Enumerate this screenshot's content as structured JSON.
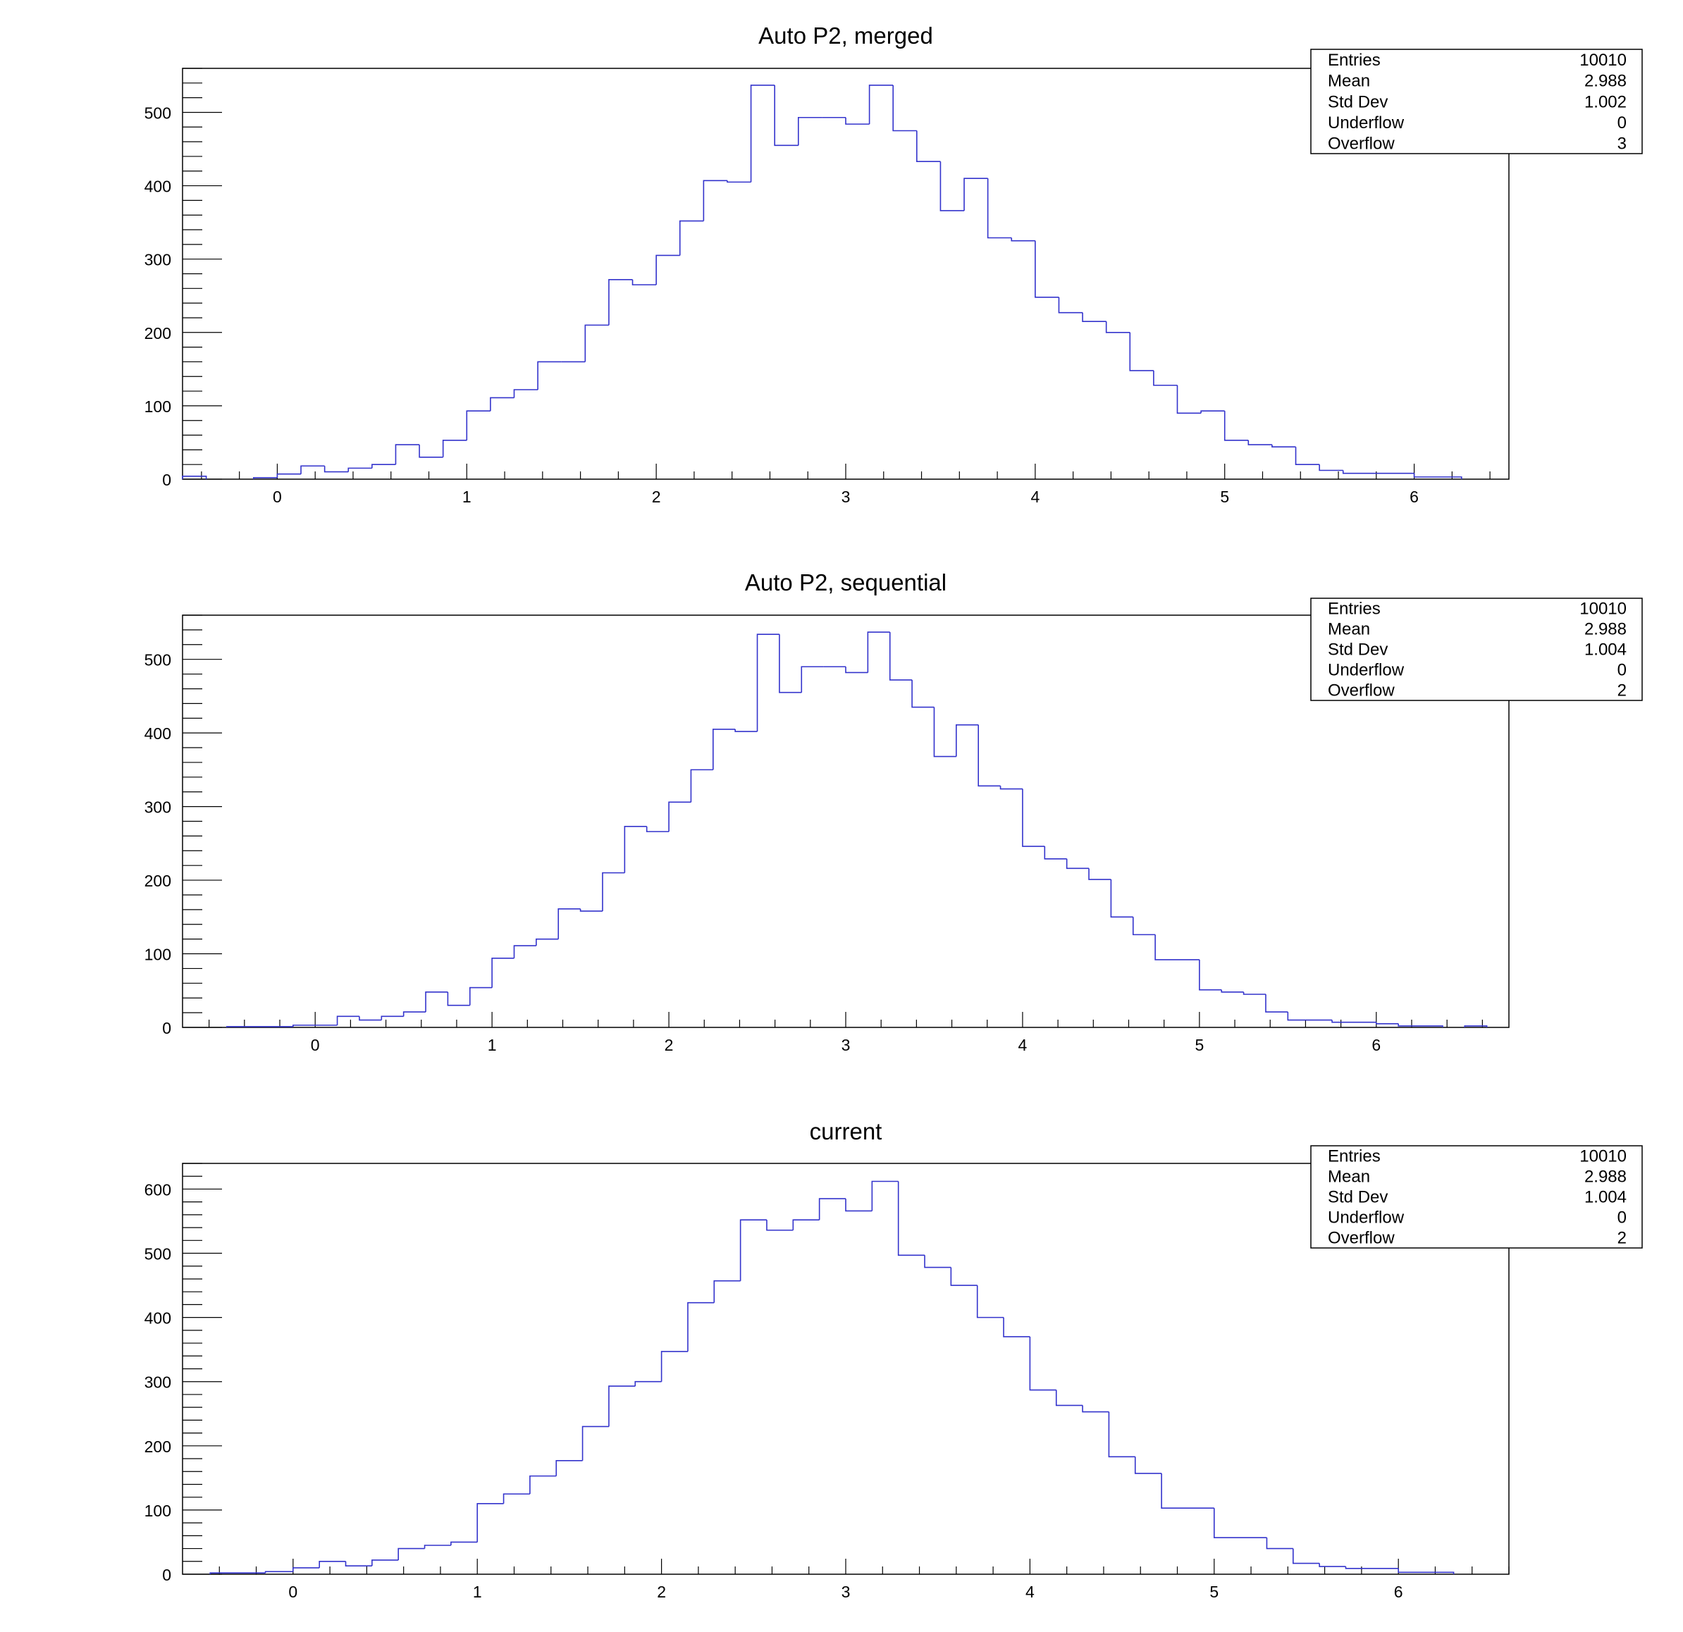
{
  "colors": {
    "histogram_line": "#3333cc",
    "frame": "#000000",
    "background": "#ffffff"
  },
  "chart_data": [
    {
      "type": "bar",
      "style": "step histogram",
      "title": "Auto P2, merged",
      "xlabel": "",
      "ylabel": "",
      "xlim": [
        -0.5,
        6.5
      ],
      "ylim": [
        0,
        560
      ],
      "x_ticks": [
        "0",
        "1",
        "2",
        "3",
        "4",
        "5",
        "6"
      ],
      "y_ticks": [
        "0",
        "100",
        "200",
        "300",
        "400",
        "500"
      ],
      "bins": [
        {
          "lo": -0.5,
          "hi": -0.375,
          "v": 4
        },
        {
          "lo": -0.125,
          "hi": 0.0,
          "v": 2
        },
        {
          "lo": 0.0,
          "hi": 0.125,
          "v": 7
        },
        {
          "lo": 0.125,
          "hi": 0.25,
          "v": 18
        },
        {
          "lo": 0.25,
          "hi": 0.375,
          "v": 10
        },
        {
          "lo": 0.375,
          "hi": 0.5,
          "v": 15
        },
        {
          "lo": 0.5,
          "hi": 0.625,
          "v": 20
        },
        {
          "lo": 0.625,
          "hi": 0.75,
          "v": 47
        },
        {
          "lo": 0.75,
          "hi": 0.875,
          "v": 30
        },
        {
          "lo": 0.875,
          "hi": 1.0,
          "v": 53
        },
        {
          "lo": 1.0,
          "hi": 1.125,
          "v": 93
        },
        {
          "lo": 1.125,
          "hi": 1.25,
          "v": 111
        },
        {
          "lo": 1.25,
          "hi": 1.375,
          "v": 122
        },
        {
          "lo": 1.375,
          "hi": 1.5,
          "v": 160
        },
        {
          "lo": 1.5,
          "hi": 1.625,
          "v": 160
        },
        {
          "lo": 1.625,
          "hi": 1.75,
          "v": 210
        },
        {
          "lo": 1.75,
          "hi": 1.875,
          "v": 272
        },
        {
          "lo": 1.875,
          "hi": 2.0,
          "v": 265
        },
        {
          "lo": 2.0,
          "hi": 2.125,
          "v": 305
        },
        {
          "lo": 2.125,
          "hi": 2.25,
          "v": 352
        },
        {
          "lo": 2.25,
          "hi": 2.375,
          "v": 407
        },
        {
          "lo": 2.375,
          "hi": 2.5,
          "v": 405
        },
        {
          "lo": 2.5,
          "hi": 2.625,
          "v": 537
        },
        {
          "lo": 2.625,
          "hi": 2.75,
          "v": 455
        },
        {
          "lo": 2.75,
          "hi": 2.875,
          "v": 493
        },
        {
          "lo": 2.875,
          "hi": 3.0,
          "v": 493
        },
        {
          "lo": 3.0,
          "hi": 3.125,
          "v": 484
        },
        {
          "lo": 3.125,
          "hi": 3.25,
          "v": 537
        },
        {
          "lo": 3.25,
          "hi": 3.375,
          "v": 475
        },
        {
          "lo": 3.375,
          "hi": 3.5,
          "v": 433
        },
        {
          "lo": 3.5,
          "hi": 3.625,
          "v": 366
        },
        {
          "lo": 3.625,
          "hi": 3.75,
          "v": 410
        },
        {
          "lo": 3.75,
          "hi": 3.875,
          "v": 329
        },
        {
          "lo": 3.875,
          "hi": 4.0,
          "v": 325
        },
        {
          "lo": 4.0,
          "hi": 4.125,
          "v": 248
        },
        {
          "lo": 4.125,
          "hi": 4.25,
          "v": 227
        },
        {
          "lo": 4.25,
          "hi": 4.375,
          "v": 215
        },
        {
          "lo": 4.375,
          "hi": 4.5,
          "v": 200
        },
        {
          "lo": 4.5,
          "hi": 4.625,
          "v": 148
        },
        {
          "lo": 4.625,
          "hi": 4.75,
          "v": 128
        },
        {
          "lo": 4.75,
          "hi": 4.875,
          "v": 90
        },
        {
          "lo": 4.875,
          "hi": 5.0,
          "v": 93
        },
        {
          "lo": 5.0,
          "hi": 5.125,
          "v": 53
        },
        {
          "lo": 5.125,
          "hi": 5.25,
          "v": 47
        },
        {
          "lo": 5.25,
          "hi": 5.375,
          "v": 44
        },
        {
          "lo": 5.375,
          "hi": 5.5,
          "v": 20
        },
        {
          "lo": 5.5,
          "hi": 5.625,
          "v": 12
        },
        {
          "lo": 5.625,
          "hi": 6.0,
          "v": 8
        },
        {
          "lo": 6.0,
          "hi": 6.25,
          "v": 3
        }
      ],
      "stats": [
        {
          "label": "Entries",
          "value": "10010"
        },
        {
          "label": "Mean",
          "value": "2.988"
        },
        {
          "label": "Std Dev",
          "value": "1.002"
        },
        {
          "label": "Underflow",
          "value": "0"
        },
        {
          "label": "Overflow",
          "value": "3"
        }
      ]
    },
    {
      "type": "bar",
      "style": "step histogram",
      "title": "Auto P2, sequential",
      "xlabel": "",
      "ylabel": "",
      "xlim": [
        -0.75,
        6.75
      ],
      "ylim": [
        0,
        560
      ],
      "x_ticks": [
        "0",
        "1",
        "2",
        "3",
        "4",
        "5",
        "6"
      ],
      "y_ticks": [
        "0",
        "100",
        "200",
        "300",
        "400",
        "500"
      ],
      "bins": [
        {
          "lo": -0.5,
          "hi": -0.125,
          "v": 1
        },
        {
          "lo": -0.125,
          "hi": 0.125,
          "v": 3
        },
        {
          "lo": 0.125,
          "hi": 0.25,
          "v": 15
        },
        {
          "lo": 0.25,
          "hi": 0.375,
          "v": 10
        },
        {
          "lo": 0.375,
          "hi": 0.5,
          "v": 15
        },
        {
          "lo": 0.5,
          "hi": 0.625,
          "v": 21
        },
        {
          "lo": 0.625,
          "hi": 0.75,
          "v": 48
        },
        {
          "lo": 0.75,
          "hi": 0.875,
          "v": 30
        },
        {
          "lo": 0.875,
          "hi": 1.0,
          "v": 54
        },
        {
          "lo": 1.0,
          "hi": 1.125,
          "v": 94
        },
        {
          "lo": 1.125,
          "hi": 1.25,
          "v": 111
        },
        {
          "lo": 1.25,
          "hi": 1.375,
          "v": 120
        },
        {
          "lo": 1.375,
          "hi": 1.5,
          "v": 161
        },
        {
          "lo": 1.5,
          "hi": 1.625,
          "v": 158
        },
        {
          "lo": 1.625,
          "hi": 1.75,
          "v": 210
        },
        {
          "lo": 1.75,
          "hi": 1.875,
          "v": 273
        },
        {
          "lo": 1.875,
          "hi": 2.0,
          "v": 266
        },
        {
          "lo": 2.0,
          "hi": 2.125,
          "v": 306
        },
        {
          "lo": 2.125,
          "hi": 2.25,
          "v": 350
        },
        {
          "lo": 2.25,
          "hi": 2.375,
          "v": 405
        },
        {
          "lo": 2.375,
          "hi": 2.5,
          "v": 402
        },
        {
          "lo": 2.5,
          "hi": 2.625,
          "v": 534
        },
        {
          "lo": 2.625,
          "hi": 2.75,
          "v": 455
        },
        {
          "lo": 2.75,
          "hi": 2.875,
          "v": 490
        },
        {
          "lo": 2.875,
          "hi": 3.0,
          "v": 490
        },
        {
          "lo": 3.0,
          "hi": 3.125,
          "v": 482
        },
        {
          "lo": 3.125,
          "hi": 3.25,
          "v": 537
        },
        {
          "lo": 3.25,
          "hi": 3.375,
          "v": 472
        },
        {
          "lo": 3.375,
          "hi": 3.5,
          "v": 435
        },
        {
          "lo": 3.5,
          "hi": 3.625,
          "v": 368
        },
        {
          "lo": 3.625,
          "hi": 3.75,
          "v": 411
        },
        {
          "lo": 3.75,
          "hi": 3.875,
          "v": 328
        },
        {
          "lo": 3.875,
          "hi": 4.0,
          "v": 324
        },
        {
          "lo": 4.0,
          "hi": 4.125,
          "v": 246
        },
        {
          "lo": 4.125,
          "hi": 4.25,
          "v": 229
        },
        {
          "lo": 4.25,
          "hi": 4.375,
          "v": 216
        },
        {
          "lo": 4.375,
          "hi": 4.5,
          "v": 201
        },
        {
          "lo": 4.5,
          "hi": 4.625,
          "v": 150
        },
        {
          "lo": 4.625,
          "hi": 4.75,
          "v": 126
        },
        {
          "lo": 4.75,
          "hi": 5.0,
          "v": 92
        },
        {
          "lo": 5.0,
          "hi": 5.125,
          "v": 51
        },
        {
          "lo": 5.125,
          "hi": 5.25,
          "v": 48
        },
        {
          "lo": 5.25,
          "hi": 5.375,
          "v": 45
        },
        {
          "lo": 5.375,
          "hi": 5.5,
          "v": 21
        },
        {
          "lo": 5.5,
          "hi": 5.75,
          "v": 10
        },
        {
          "lo": 5.75,
          "hi": 6.0,
          "v": 7
        },
        {
          "lo": 6.0,
          "hi": 6.125,
          "v": 5
        },
        {
          "lo": 6.125,
          "hi": 6.375,
          "v": 2
        },
        {
          "lo": 6.5,
          "hi": 6.625,
          "v": 2
        }
      ],
      "stats": [
        {
          "label": "Entries",
          "value": "10010"
        },
        {
          "label": "Mean",
          "value": "2.988"
        },
        {
          "label": "Std Dev",
          "value": "1.004"
        },
        {
          "label": "Underflow",
          "value": "0"
        },
        {
          "label": "Overflow",
          "value": "2"
        }
      ]
    },
    {
      "type": "bar",
      "style": "step histogram",
      "title": "current",
      "xlabel": "",
      "ylabel": "",
      "xlim": [
        -0.6,
        6.6
      ],
      "ylim": [
        0,
        640
      ],
      "x_ticks": [
        "0",
        "1",
        "2",
        "3",
        "4",
        "5",
        "6"
      ],
      "y_ticks": [
        "0",
        "100",
        "200",
        "300",
        "400",
        "500",
        "600"
      ],
      "bins": [
        {
          "lo": -0.45,
          "hi": -0.15,
          "v": 2
        },
        {
          "lo": -0.15,
          "hi": 0.0,
          "v": 4
        },
        {
          "lo": 0.0,
          "hi": 0.1429,
          "v": 10
        },
        {
          "lo": 0.1429,
          "hi": 0.2857,
          "v": 20
        },
        {
          "lo": 0.2857,
          "hi": 0.4286,
          "v": 13
        },
        {
          "lo": 0.4286,
          "hi": 0.5714,
          "v": 22
        },
        {
          "lo": 0.5714,
          "hi": 0.7143,
          "v": 40
        },
        {
          "lo": 0.7143,
          "hi": 0.8571,
          "v": 45
        },
        {
          "lo": 0.8571,
          "hi": 1.0,
          "v": 50
        },
        {
          "lo": 1.0,
          "hi": 1.1429,
          "v": 110
        },
        {
          "lo": 1.1429,
          "hi": 1.2857,
          "v": 125
        },
        {
          "lo": 1.2857,
          "hi": 1.4286,
          "v": 153
        },
        {
          "lo": 1.4286,
          "hi": 1.5714,
          "v": 177
        },
        {
          "lo": 1.5714,
          "hi": 1.7143,
          "v": 230
        },
        {
          "lo": 1.7143,
          "hi": 1.8571,
          "v": 293
        },
        {
          "lo": 1.8571,
          "hi": 2.0,
          "v": 300
        },
        {
          "lo": 2.0,
          "hi": 2.1429,
          "v": 347
        },
        {
          "lo": 2.1429,
          "hi": 2.2857,
          "v": 423
        },
        {
          "lo": 2.2857,
          "hi": 2.4286,
          "v": 457
        },
        {
          "lo": 2.4286,
          "hi": 2.5714,
          "v": 552
        },
        {
          "lo": 2.5714,
          "hi": 2.7143,
          "v": 536
        },
        {
          "lo": 2.7143,
          "hi": 2.8571,
          "v": 552
        },
        {
          "lo": 2.8571,
          "hi": 3.0,
          "v": 585
        },
        {
          "lo": 3.0,
          "hi": 3.1429,
          "v": 566
        },
        {
          "lo": 3.1429,
          "hi": 3.2857,
          "v": 612
        },
        {
          "lo": 3.2857,
          "hi": 3.4286,
          "v": 497
        },
        {
          "lo": 3.4286,
          "hi": 3.5714,
          "v": 478
        },
        {
          "lo": 3.5714,
          "hi": 3.7143,
          "v": 450
        },
        {
          "lo": 3.7143,
          "hi": 3.8571,
          "v": 400
        },
        {
          "lo": 3.8571,
          "hi": 4.0,
          "v": 370
        },
        {
          "lo": 4.0,
          "hi": 4.1429,
          "v": 287
        },
        {
          "lo": 4.1429,
          "hi": 4.2857,
          "v": 263
        },
        {
          "lo": 4.2857,
          "hi": 4.4286,
          "v": 253
        },
        {
          "lo": 4.4286,
          "hi": 4.5714,
          "v": 183
        },
        {
          "lo": 4.5714,
          "hi": 4.7143,
          "v": 157
        },
        {
          "lo": 4.7143,
          "hi": 5.0,
          "v": 103
        },
        {
          "lo": 5.0,
          "hi": 5.2857,
          "v": 57
        },
        {
          "lo": 5.2857,
          "hi": 5.4286,
          "v": 40
        },
        {
          "lo": 5.4286,
          "hi": 5.5714,
          "v": 17
        },
        {
          "lo": 5.5714,
          "hi": 5.7143,
          "v": 12
        },
        {
          "lo": 5.7143,
          "hi": 6.0,
          "v": 9
        },
        {
          "lo": 6.0,
          "hi": 6.3,
          "v": 3
        }
      ],
      "stats": [
        {
          "label": "Entries",
          "value": "10010"
        },
        {
          "label": "Mean",
          "value": "2.988"
        },
        {
          "label": "Std Dev",
          "value": "1.004"
        },
        {
          "label": "Underflow",
          "value": "0"
        },
        {
          "label": "Overflow",
          "value": "2"
        }
      ]
    }
  ]
}
